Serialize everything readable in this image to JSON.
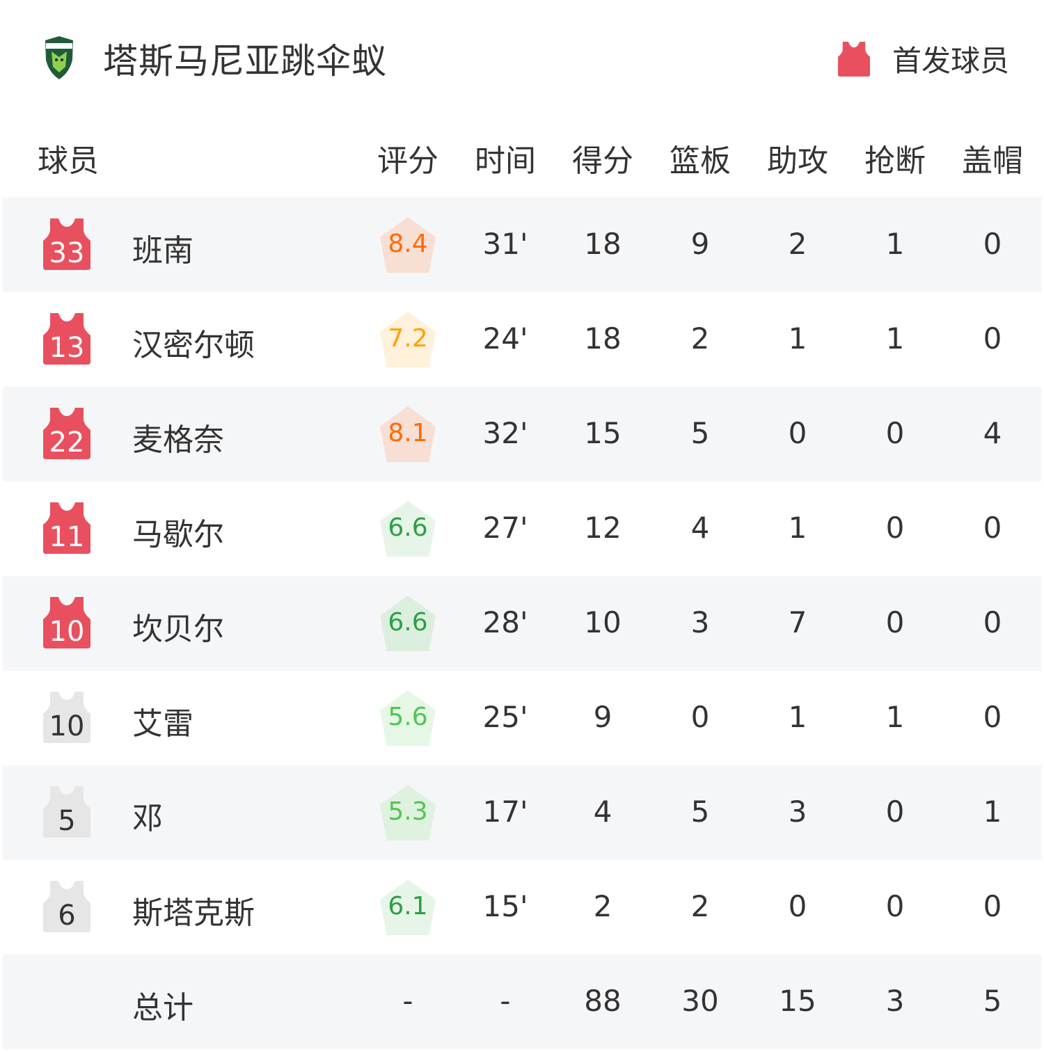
{
  "header": {
    "team_name": "塔斯马尼亚跳伞蚁",
    "logo": "Tasmania JackJumpers",
    "legend_label": "首发球员",
    "legend_icon": "jersey-icon",
    "starter_color": "#e8505f",
    "bench_color": "#e6e6e6"
  },
  "columns": {
    "player": "球员",
    "rating": "评分",
    "time": "时间",
    "points": "得分",
    "rebounds": "篮板",
    "assists": "助攻",
    "steals": "抢断",
    "blocks": "盖帽"
  },
  "players": [
    {
      "number": "33",
      "name": "班南",
      "starter": true,
      "rating": "8.4",
      "rating_color": "#ff6a00",
      "rating_bg": "#f8dfd4",
      "time": "31'",
      "points": "18",
      "rebounds": "9",
      "assists": "2",
      "steals": "1",
      "blocks": "0"
    },
    {
      "number": "13",
      "name": "汉密尔顿",
      "starter": true,
      "rating": "7.2",
      "rating_color": "#ffa200",
      "rating_bg": "#fff1db",
      "time": "24'",
      "points": "18",
      "rebounds": "2",
      "assists": "1",
      "steals": "1",
      "blocks": "0"
    },
    {
      "number": "22",
      "name": "麦格奈",
      "starter": true,
      "rating": "8.1",
      "rating_color": "#ff6a00",
      "rating_bg": "#f8dfd4",
      "time": "32'",
      "points": "15",
      "rebounds": "5",
      "assists": "0",
      "steals": "0",
      "blocks": "4"
    },
    {
      "number": "11",
      "name": "马歇尔",
      "starter": true,
      "rating": "6.6",
      "rating_color": "#2e9e44",
      "rating_bg": "#e6f5e8",
      "time": "27'",
      "points": "12",
      "rebounds": "4",
      "assists": "1",
      "steals": "0",
      "blocks": "0"
    },
    {
      "number": "10",
      "name": "坎贝尔",
      "starter": true,
      "rating": "6.6",
      "rating_color": "#2e9e44",
      "rating_bg": "#dcefdf",
      "time": "28'",
      "points": "10",
      "rebounds": "3",
      "assists": "7",
      "steals": "0",
      "blocks": "0"
    },
    {
      "number": "10",
      "name": "艾雷",
      "starter": false,
      "rating": "5.6",
      "rating_color": "#52c452",
      "rating_bg": "#e6f7e6",
      "time": "25'",
      "points": "9",
      "rebounds": "0",
      "assists": "1",
      "steals": "1",
      "blocks": "0"
    },
    {
      "number": "5",
      "name": "邓",
      "starter": false,
      "rating": "5.3",
      "rating_color": "#52c452",
      "rating_bg": "#dff1df",
      "time": "17'",
      "points": "4",
      "rebounds": "5",
      "assists": "3",
      "steals": "0",
      "blocks": "1"
    },
    {
      "number": "6",
      "name": "斯塔克斯",
      "starter": false,
      "rating": "6.1",
      "rating_color": "#2e9e44",
      "rating_bg": "#e6f5e8",
      "time": "15'",
      "points": "2",
      "rebounds": "2",
      "assists": "0",
      "steals": "0",
      "blocks": "0"
    }
  ],
  "totals": {
    "label": "总计",
    "rating": "-",
    "time": "-",
    "points": "88",
    "rebounds": "30",
    "assists": "15",
    "steals": "3",
    "blocks": "5"
  }
}
